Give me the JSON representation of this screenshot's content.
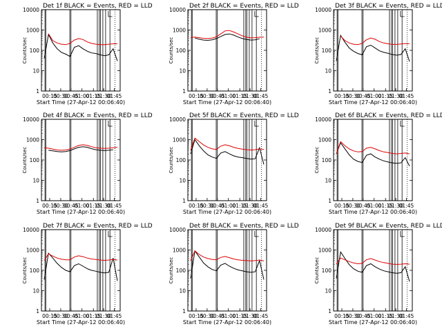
{
  "chart_data": [
    {
      "type": "line",
      "title": "Det 1f BLACK = Events, RED = LLD",
      "xlabel": "Start Time (27-Apr-12 00:06:40)",
      "ylabel": "Counts/sec",
      "series": [
        {
          "name": "Events",
          "color": "#000000",
          "values": [
            40,
            600,
            230,
            120,
            80,
            65,
            50,
            140,
            170,
            120,
            90,
            75,
            70,
            60,
            55,
            60,
            120,
            30
          ]
        },
        {
          "name": "LLD",
          "color": "#dd0000",
          "values": [
            null,
            650,
            300,
            230,
            200,
            190,
            220,
            320,
            380,
            340,
            260,
            220,
            200,
            190,
            190,
            200,
            210,
            210
          ]
        }
      ]
    },
    {
      "type": "line",
      "title": "Det 2f BLACK = Events, RED = LLD",
      "xlabel": "Start Time (27-Apr-12 00:06:40)",
      "ylabel": "Counts/sec",
      "series": [
        {
          "name": "Events",
          "color": "#000000",
          "values": [
            null,
            400,
            350,
            320,
            310,
            330,
            380,
            480,
            600,
            640,
            560,
            450,
            380,
            340,
            320,
            330,
            370,
            null
          ]
        },
        {
          "name": "LLD",
          "color": "#dd0000",
          "values": [
            420,
            450,
            420,
            390,
            380,
            400,
            460,
            640,
            900,
            950,
            800,
            640,
            520,
            440,
            410,
            420,
            440,
            450
          ]
        }
      ]
    },
    {
      "type": "line",
      "title": "Det 3f BLACK = Events, RED = LLD",
      "xlabel": "Start Time (27-Apr-12 00:06:40)",
      "ylabel": "Counts/sec",
      "series": [
        {
          "name": "Events",
          "color": "#000000",
          "values": [
            30,
            550,
            250,
            130,
            90,
            70,
            60,
            150,
            180,
            130,
            95,
            80,
            72,
            62,
            58,
            62,
            120,
            28
          ]
        },
        {
          "name": "LLD",
          "color": "#dd0000",
          "values": [
            null,
            500,
            300,
            230,
            200,
            190,
            220,
            330,
            400,
            350,
            270,
            230,
            210,
            195,
            195,
            205,
            215,
            215
          ]
        }
      ]
    },
    {
      "type": "line",
      "title": "Det 4f BLACK = Events, RED = LLD",
      "xlabel": "Start Time (27-Apr-12 00:06:40)",
      "ylabel": "Counts/sec",
      "series": [
        {
          "name": "Events",
          "color": "#000000",
          "values": [
            null,
            300,
            280,
            260,
            250,
            260,
            290,
            350,
            420,
            450,
            420,
            360,
            320,
            300,
            290,
            300,
            320,
            null
          ]
        },
        {
          "name": "LLD",
          "color": "#dd0000",
          "values": [
            400,
            380,
            340,
            310,
            300,
            310,
            340,
            420,
            520,
            560,
            520,
            450,
            400,
            380,
            370,
            380,
            400,
            420
          ]
        }
      ]
    },
    {
      "type": "line",
      "title": "Det 5f BLACK = Events, RED = LLD",
      "xlabel": "Start Time (27-Apr-12 00:06:40)",
      "ylabel": "Counts/sec",
      "series": [
        {
          "name": "Events",
          "color": "#000000",
          "values": [
            200,
            1000,
            500,
            280,
            180,
            140,
            120,
            220,
            260,
            200,
            160,
            140,
            130,
            120,
            110,
            115,
            400,
            60
          ]
        },
        {
          "name": "LLD",
          "color": "#dd0000",
          "values": [
            300,
            1200,
            800,
            550,
            420,
            350,
            330,
            480,
            560,
            500,
            420,
            370,
            340,
            320,
            310,
            320,
            350,
            330
          ]
        }
      ]
    },
    {
      "type": "line",
      "title": "Det 6f BLACK = Events, RED = LLD",
      "xlabel": "Start Time (27-Apr-12 00:06:40)",
      "ylabel": "Counts/sec",
      "series": [
        {
          "name": "Events",
          "color": "#000000",
          "values": [
            200,
            700,
            350,
            180,
            110,
            85,
            75,
            170,
            200,
            140,
            110,
            90,
            80,
            72,
            68,
            72,
            130,
            50
          ]
        },
        {
          "name": "LLD",
          "color": "#dd0000",
          "values": [
            200,
            800,
            500,
            350,
            280,
            250,
            260,
            380,
            420,
            350,
            290,
            250,
            230,
            210,
            200,
            210,
            220,
            200
          ]
        }
      ]
    },
    {
      "type": "line",
      "title": "Det 7f BLACK = Events, RED = LLD",
      "xlabel": "Start Time (27-Apr-12 00:06:40)",
      "ylabel": "Counts/sec",
      "series": [
        {
          "name": "Events",
          "color": "#000000",
          "values": [
            35,
            700,
            400,
            220,
            140,
            100,
            85,
            170,
            210,
            160,
            120,
            100,
            90,
            80,
            75,
            80,
            400,
            30
          ]
        },
        {
          "name": "LLD",
          "color": "#dd0000",
          "values": [
            300,
            650,
            500,
            400,
            350,
            330,
            330,
            450,
            520,
            470,
            400,
            360,
            340,
            320,
            310,
            320,
            340,
            320
          ]
        }
      ]
    },
    {
      "type": "line",
      "title": "Det 8f BLACK = Events, RED = LLD",
      "xlabel": "Start Time (27-Apr-12 00:06:40)",
      "ylabel": "Counts/sec",
      "series": [
        {
          "name": "Events",
          "color": "#000000",
          "values": [
            40,
            900,
            450,
            230,
            150,
            110,
            95,
            180,
            220,
            160,
            125,
            105,
            95,
            85,
            80,
            85,
            300,
            35
          ]
        },
        {
          "name": "LLD",
          "color": "#dd0000",
          "values": [
            300,
            900,
            600,
            450,
            380,
            340,
            330,
            430,
            480,
            420,
            360,
            330,
            310,
            300,
            290,
            300,
            320,
            290
          ]
        }
      ]
    },
    {
      "type": "line",
      "title": "Det 9f BLACK = Events, RED = LLD",
      "xlabel": "Start Time (27-Apr-12 00:06:40)",
      "ylabel": "Counts/sec",
      "series": [
        {
          "name": "Events",
          "color": "#000000",
          "values": [
            40,
            800,
            380,
            190,
            120,
            90,
            80,
            170,
            210,
            150,
            115,
            95,
            85,
            76,
            72,
            76,
            150,
            28
          ]
        },
        {
          "name": "LLD",
          "color": "#dd0000",
          "values": [
            200,
            400,
            330,
            270,
            230,
            210,
            220,
            330,
            380,
            320,
            270,
            240,
            220,
            200,
            195,
            200,
            210,
            200
          ]
        }
      ]
    }
  ],
  "axes": {
    "xticks": [
      "00:15",
      "00:30",
      "00:45",
      "01:00",
      "01:15",
      "01:30",
      "01:45"
    ],
    "yticks": [
      "1",
      "10",
      "100",
      "1000",
      "10000"
    ],
    "ylim": [
      1,
      10000
    ],
    "xlim": [
      "00:06:40",
      "01:48:00"
    ],
    "yscale": "log"
  }
}
